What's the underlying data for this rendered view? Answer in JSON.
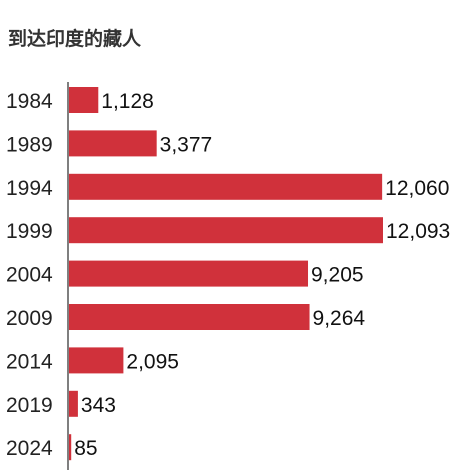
{
  "title": "到达印度的藏人",
  "chart_data": {
    "type": "bar",
    "orientation": "horizontal",
    "title": "到达印度的藏人",
    "categories": [
      "1984",
      "1989",
      "1994",
      "1999",
      "2004",
      "2009",
      "2014",
      "2019",
      "2024"
    ],
    "values": [
      1128,
      3377,
      12060,
      12093,
      9205,
      9264,
      2095,
      343,
      85
    ],
    "value_labels": [
      "1,128",
      "3,377",
      "12,060",
      "12,093",
      "9,205",
      "9,264",
      "2,095",
      "343",
      "85"
    ],
    "xlim": [
      0,
      12093
    ],
    "bar_color": "#d0313b",
    "axis_color": "#555555",
    "grid": false,
    "legend": "none"
  }
}
